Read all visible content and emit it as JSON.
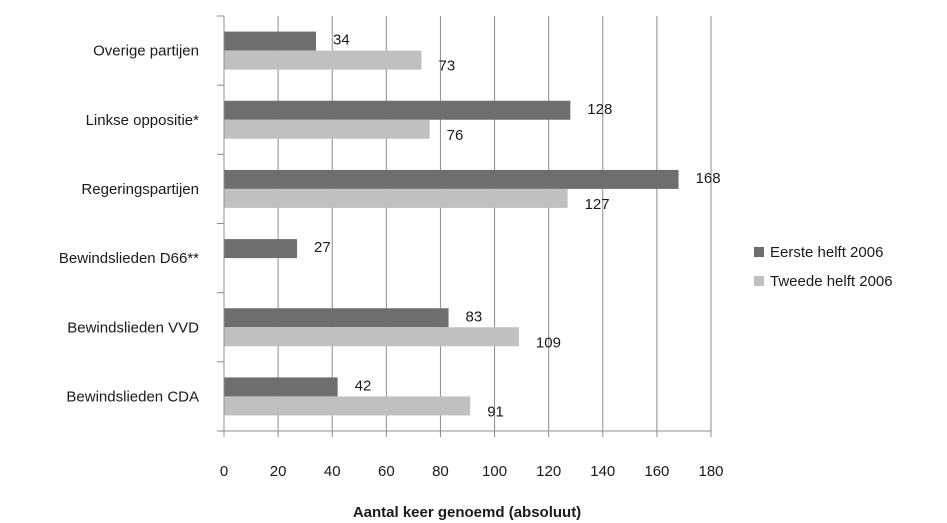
{
  "chart_data": {
    "type": "bar",
    "orientation": "horizontal",
    "categories": [
      "Overige partijen",
      "Linkse oppositie*",
      "Regeringspartijen",
      "Bewindslieden D66**",
      "Bewindslieden VVD",
      "Bewindslieden CDA"
    ],
    "series": [
      {
        "name": "Eerste helft 2006",
        "color": "#6e6e6e",
        "values": [
          34,
          128,
          168,
          27,
          83,
          42
        ]
      },
      {
        "name": "Tweede helft 2006",
        "color": "#c0c0c0",
        "values": [
          73,
          76,
          127,
          null,
          109,
          91
        ]
      }
    ],
    "xticks": [
      "0",
      "20",
      "40",
      "60",
      "80",
      "100",
      "120",
      "140",
      "160",
      "180"
    ],
    "xlim": [
      0,
      180
    ],
    "xlabel": "Aantal keer genoemd (absoluut)",
    "ylabel": "",
    "title": "",
    "grid": true,
    "legend": "right"
  }
}
